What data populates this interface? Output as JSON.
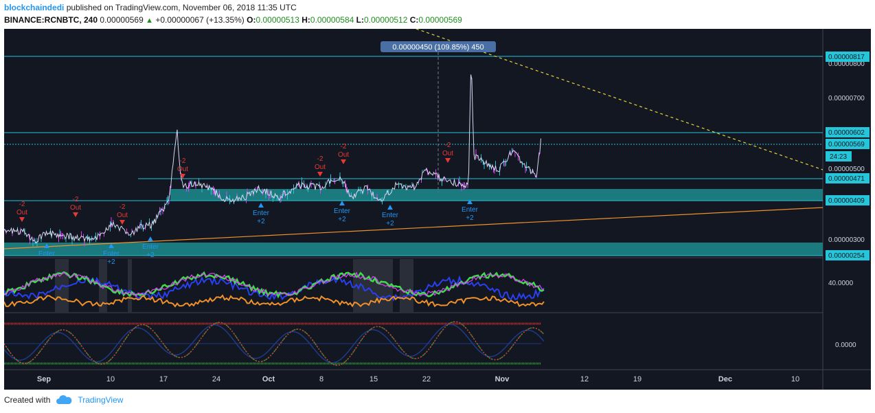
{
  "header": {
    "author": "blockchaindedi",
    "published_text": "published on TradingView.com, November 06, 2018 11:35 UTC",
    "symbol": "BINANCE:RCNBTC, 240",
    "last": "0.00000569",
    "change": "+0.00000067 (+13.35%)",
    "open_label": "O:",
    "open": "0.00000513",
    "high_label": "H:",
    "high": "0.00000584",
    "low_label": "L:",
    "low": "0.00000512",
    "close_label": "C:",
    "close": "0.00000569"
  },
  "price_axis": {
    "ticks": [
      "0.00000800",
      "0.00000700",
      "0.00000500",
      "0.00000300"
    ],
    "tags": [
      "0.00000817",
      "0.00000602",
      "0.00000569",
      "0.00000471",
      "0.00000409",
      "0.00000254"
    ],
    "countdown": "24:23"
  },
  "indicator_axis": {
    "upper": "40.0000",
    "lower": "0.0000"
  },
  "time_axis": [
    "Sep",
    "10",
    "17",
    "24",
    "Oct",
    "8",
    "15",
    "22",
    "Nov",
    "12",
    "19",
    "Dec",
    "10"
  ],
  "measure_label": "0.00000450 (109.85%) 450",
  "signals": {
    "out_value": "-2",
    "out_word": "Out",
    "enter_word": "Enter",
    "enter_value": "+2",
    "partial_enter": "+2"
  },
  "colors": {
    "background": "#131722",
    "hline": "#26c6da",
    "zone": "#1a7a7e",
    "trend_orange": "#f0912a",
    "trend_yellow": "#e6d43a",
    "sell_red": "#e53935",
    "buy_blue": "#2196f3"
  },
  "footer": {
    "created_with": "Created with",
    "brand": "TradingView"
  }
}
